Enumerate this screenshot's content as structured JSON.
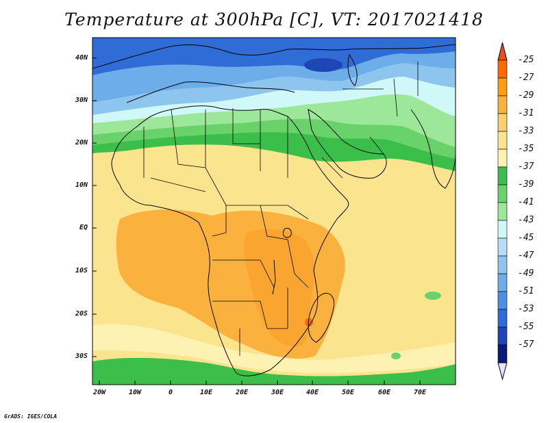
{
  "title": "Temperature at 300hPa [C], VT: 2017021418",
  "credit": "GrADS: IGES/COLA",
  "lat_labels": [
    "40N",
    "30N",
    "20N",
    "10N",
    "EQ",
    "10S",
    "20S",
    "30S"
  ],
  "lon_labels": [
    "20W",
    "10W",
    "0",
    "10E",
    "20E",
    "30E",
    "40E",
    "50E",
    "60E",
    "70E"
  ],
  "colorbar": {
    "top_arrow_color": "#e8501c",
    "bottom_arrow_color": "#e8e0ff",
    "levels": [
      "-25",
      "-27",
      "-29",
      "-31",
      "-33",
      "-35",
      "-37",
      "-39",
      "-41",
      "-43",
      "-45",
      "-47",
      "-49",
      "-51",
      "-53",
      "-55",
      "-57"
    ],
    "colors": [
      "#ff6a00",
      "#ff9d12",
      "#fbb13e",
      "#f9cf6f",
      "#fbe48e",
      "#fdf2b2",
      "#3cbf4a",
      "#6ad26b",
      "#9de79a",
      "#d1f8f8",
      "#b8dcf5",
      "#8ec5ef",
      "#6cadea",
      "#4f8fe2",
      "#2f6cd6",
      "#1e46b4",
      "#0b1a78"
    ]
  },
  "map_colors": {
    "polar_dark": "#1e46b4",
    "polar": "#2f6cd6",
    "cool": "#6cadea",
    "light_blue": "#8ec5ef",
    "pale": "#d1f8f8",
    "green_light": "#9de79a",
    "green": "#6ad26b",
    "green_dark": "#3cbf4a",
    "tropic": "#fbe48e",
    "warm": "#fbb13e",
    "warmer": "#f9a530",
    "hot": "#ff6a00"
  }
}
